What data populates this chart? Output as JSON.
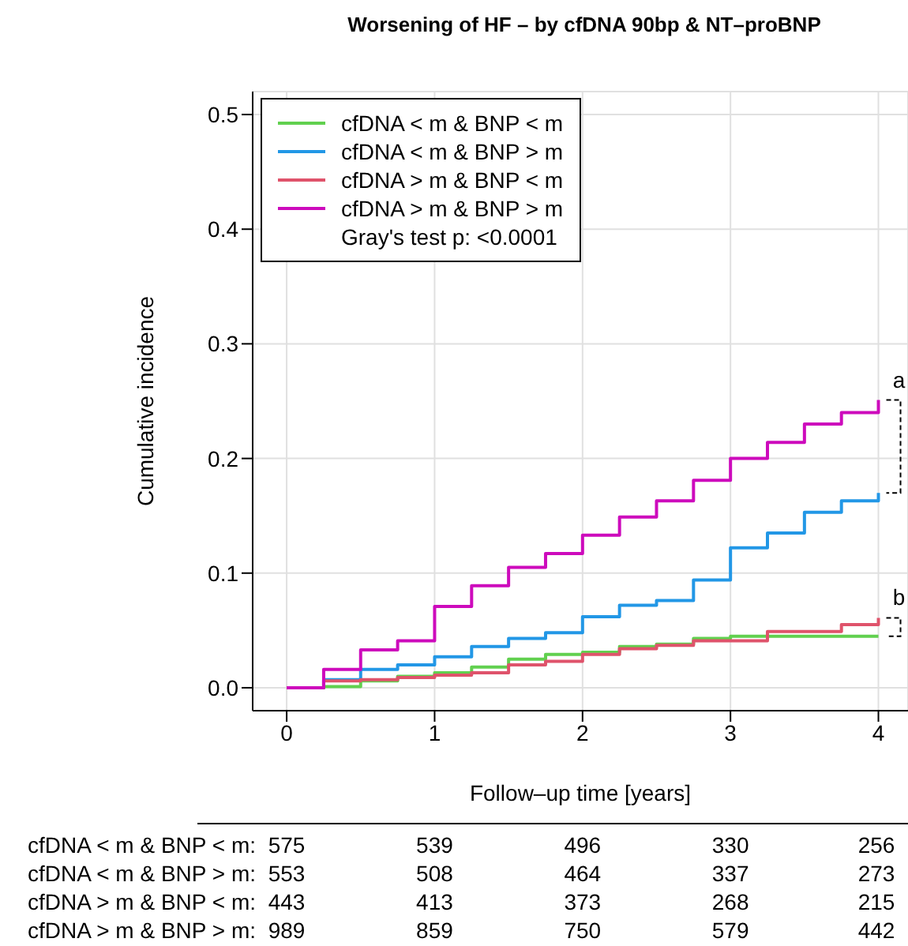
{
  "chart_data": {
    "type": "step",
    "title": "Worsening of HF – by cfDNA 90bp & NT–proBNP",
    "xlabel": "Follow–up time [years]",
    "ylabel": "Cumulative incidence",
    "x": [
      0,
      0.25,
      0.5,
      0.75,
      1,
      1.25,
      1.5,
      1.75,
      2,
      2.25,
      2.5,
      2.75,
      3,
      3.25,
      3.5,
      3.75,
      4
    ],
    "series": [
      {
        "name": "cfDNA < m & BNP < m",
        "color": "#61d04f",
        "values": [
          0,
          0.001,
          0.006,
          0.01,
          0.013,
          0.018,
          0.025,
          0.029,
          0.031,
          0.036,
          0.038,
          0.043,
          0.045,
          0.045,
          0.045,
          0.045,
          0.045
        ]
      },
      {
        "name": "cfDNA < m & BNP > m",
        "color": "#2297e6",
        "values": [
          0,
          0.007,
          0.016,
          0.02,
          0.027,
          0.036,
          0.043,
          0.048,
          0.062,
          0.072,
          0.076,
          0.094,
          0.122,
          0.135,
          0.153,
          0.163,
          0.17
        ]
      },
      {
        "name": "cfDNA > m & BNP < m",
        "color": "#df536b",
        "values": [
          0,
          0.006,
          0.007,
          0.009,
          0.011,
          0.013,
          0.02,
          0.023,
          0.029,
          0.034,
          0.037,
          0.041,
          0.041,
          0.049,
          0.049,
          0.055,
          0.061
        ]
      },
      {
        "name": "cfDNA > m & BNP > m",
        "color": "#cd0bbc",
        "values": [
          0,
          0.016,
          0.033,
          0.041,
          0.071,
          0.089,
          0.105,
          0.117,
          0.133,
          0.149,
          0.163,
          0.181,
          0.2,
          0.214,
          0.23,
          0.24,
          0.251
        ]
      }
    ],
    "xlim": [
      -0.23,
      4.2
    ],
    "ylim": [
      -0.02,
      0.52
    ],
    "xticks": [
      0,
      1,
      2,
      3,
      4
    ],
    "yticks": [
      {
        "value": 0,
        "label": "0.0"
      },
      0.1,
      0.2,
      0.3,
      0.4,
      0.5
    ],
    "grid": true,
    "legend": "top left",
    "line_style": "solid",
    "marker": "none",
    "annotations": [
      "Gray's test p:  <0.0001",
      "a",
      "b",
      "cfDNA < m & BNP < m:",
      "cfDNA < m & BNP > m:",
      "cfDNA > m & BNP < m:",
      "cfDNA > m & BNP > m:",
      "575",
      "539",
      "496",
      "330",
      "256",
      "553",
      "508",
      "464",
      "337",
      "273",
      "443",
      "413",
      "373",
      "268",
      "215",
      "989",
      "859",
      "750",
      "579",
      "442"
    ]
  }
}
